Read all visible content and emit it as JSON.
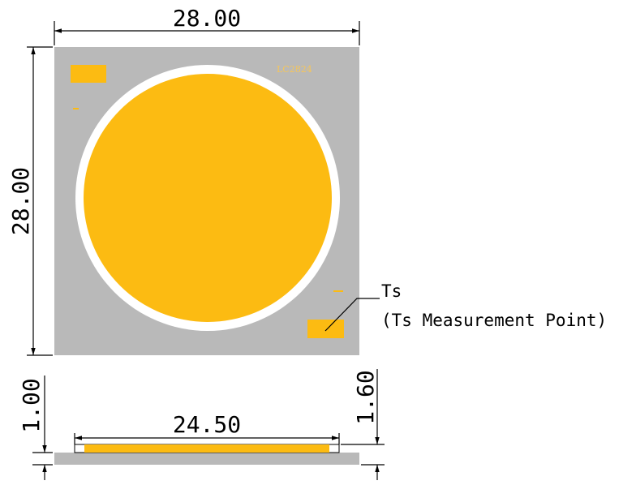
{
  "dimensions": {
    "top_width": "28.00",
    "left_height": "28.00",
    "side_thickness_left": "1.00",
    "side_thickness_right": "1.60",
    "side_emitter_width": "24.50"
  },
  "marking": "LC2824",
  "annotation": {
    "title": "Ts",
    "subtitle": "(Ts Measurement Point)"
  },
  "colors": {
    "substrate": "#b9b9b9",
    "emitter": "#fcbb12",
    "ring": "#ffffff",
    "line": "#000000"
  }
}
